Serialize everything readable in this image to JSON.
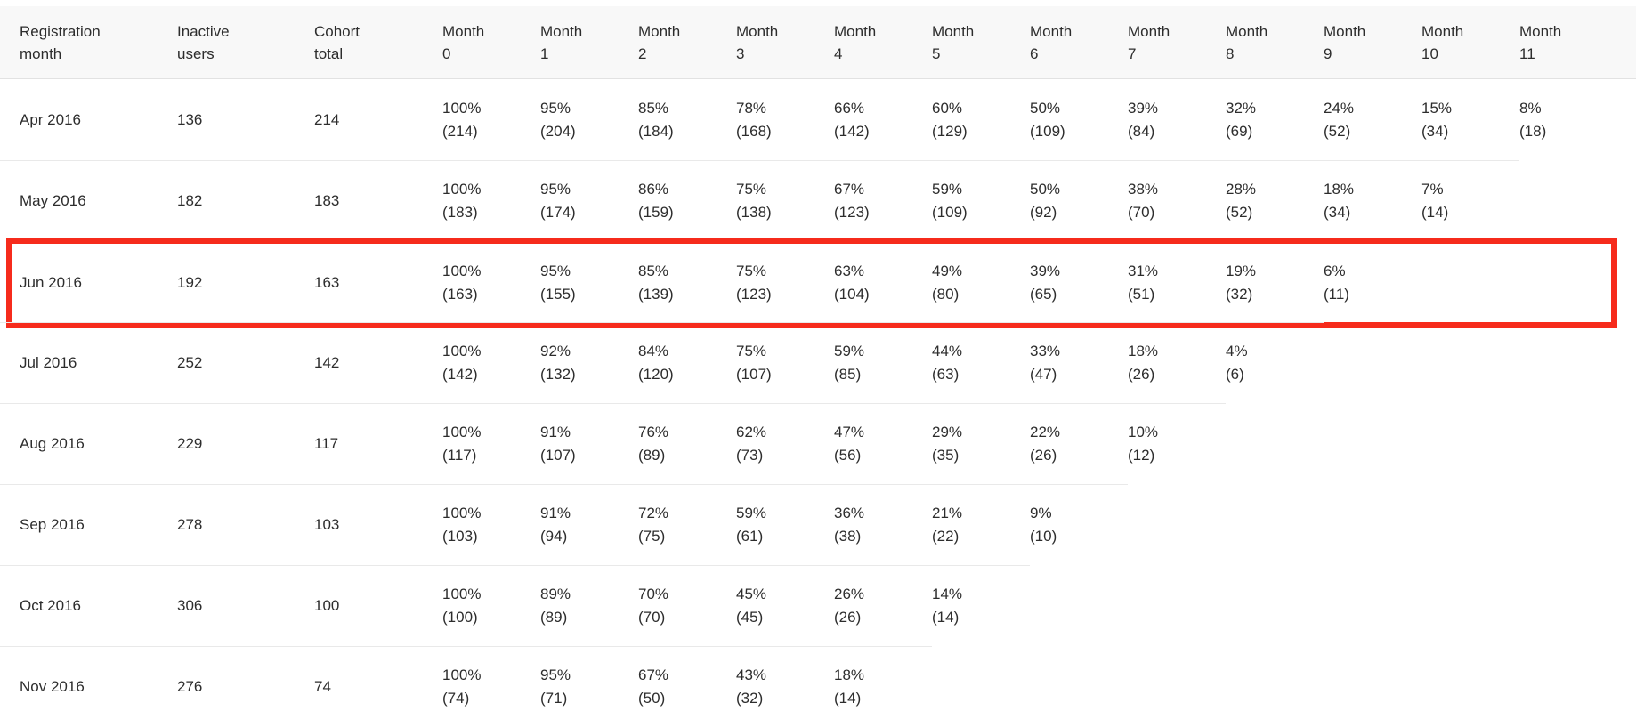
{
  "chart_data": {
    "type": "table",
    "title": "",
    "columns": [
      "Registration month",
      "Inactive users",
      "Cohort total",
      "Month 0",
      "Month 1",
      "Month 2",
      "Month 3",
      "Month 4",
      "Month 5",
      "Month 6",
      "Month 7",
      "Month 8",
      "Month 9",
      "Month 10",
      "Month 11"
    ],
    "highlighted_row": "Jun 2016",
    "rows": [
      {
        "registration_month": "Apr 2016",
        "inactive_users": "136",
        "cohort_total": "214",
        "highlighted": false,
        "retention": [
          {
            "pct": "100%",
            "count": "(214)"
          },
          {
            "pct": "95%",
            "count": "(204)"
          },
          {
            "pct": "85%",
            "count": "(184)"
          },
          {
            "pct": "78%",
            "count": "(168)"
          },
          {
            "pct": "66%",
            "count": "(142)"
          },
          {
            "pct": "60%",
            "count": "(129)"
          },
          {
            "pct": "50%",
            "count": "(109)"
          },
          {
            "pct": "39%",
            "count": "(84)"
          },
          {
            "pct": "32%",
            "count": "(69)"
          },
          {
            "pct": "24%",
            "count": "(52)"
          },
          {
            "pct": "15%",
            "count": "(34)"
          },
          {
            "pct": "8%",
            "count": "(18)"
          }
        ]
      },
      {
        "registration_month": "May 2016",
        "inactive_users": "182",
        "cohort_total": "183",
        "highlighted": false,
        "retention": [
          {
            "pct": "100%",
            "count": "(183)"
          },
          {
            "pct": "95%",
            "count": "(174)"
          },
          {
            "pct": "86%",
            "count": "(159)"
          },
          {
            "pct": "75%",
            "count": "(138)"
          },
          {
            "pct": "67%",
            "count": "(123)"
          },
          {
            "pct": "59%",
            "count": "(109)"
          },
          {
            "pct": "50%",
            "count": "(92)"
          },
          {
            "pct": "38%",
            "count": "(70)"
          },
          {
            "pct": "28%",
            "count": "(52)"
          },
          {
            "pct": "18%",
            "count": "(34)"
          },
          {
            "pct": "7%",
            "count": "(14)"
          }
        ]
      },
      {
        "registration_month": "Jun 2016",
        "inactive_users": "192",
        "cohort_total": "163",
        "highlighted": true,
        "retention": [
          {
            "pct": "100%",
            "count": "(163)"
          },
          {
            "pct": "95%",
            "count": "(155)"
          },
          {
            "pct": "85%",
            "count": "(139)"
          },
          {
            "pct": "75%",
            "count": "(123)"
          },
          {
            "pct": "63%",
            "count": "(104)"
          },
          {
            "pct": "49%",
            "count": "(80)"
          },
          {
            "pct": "39%",
            "count": "(65)"
          },
          {
            "pct": "31%",
            "count": "(51)"
          },
          {
            "pct": "19%",
            "count": "(32)"
          },
          {
            "pct": "6%",
            "count": "(11)"
          }
        ]
      },
      {
        "registration_month": "Jul 2016",
        "inactive_users": "252",
        "cohort_total": "142",
        "highlighted": false,
        "retention": [
          {
            "pct": "100%",
            "count": "(142)"
          },
          {
            "pct": "92%",
            "count": "(132)"
          },
          {
            "pct": "84%",
            "count": "(120)"
          },
          {
            "pct": "75%",
            "count": "(107)"
          },
          {
            "pct": "59%",
            "count": "(85)"
          },
          {
            "pct": "44%",
            "count": "(63)"
          },
          {
            "pct": "33%",
            "count": "(47)"
          },
          {
            "pct": "18%",
            "count": "(26)"
          },
          {
            "pct": "4%",
            "count": "(6)"
          }
        ]
      },
      {
        "registration_month": "Aug 2016",
        "inactive_users": "229",
        "cohort_total": "117",
        "highlighted": false,
        "retention": [
          {
            "pct": "100%",
            "count": "(117)"
          },
          {
            "pct": "91%",
            "count": "(107)"
          },
          {
            "pct": "76%",
            "count": "(89)"
          },
          {
            "pct": "62%",
            "count": "(73)"
          },
          {
            "pct": "47%",
            "count": "(56)"
          },
          {
            "pct": "29%",
            "count": "(35)"
          },
          {
            "pct": "22%",
            "count": "(26)"
          },
          {
            "pct": "10%",
            "count": "(12)"
          }
        ]
      },
      {
        "registration_month": "Sep 2016",
        "inactive_users": "278",
        "cohort_total": "103",
        "highlighted": false,
        "retention": [
          {
            "pct": "100%",
            "count": "(103)"
          },
          {
            "pct": "91%",
            "count": "(94)"
          },
          {
            "pct": "72%",
            "count": "(75)"
          },
          {
            "pct": "59%",
            "count": "(61)"
          },
          {
            "pct": "36%",
            "count": "(38)"
          },
          {
            "pct": "21%",
            "count": "(22)"
          },
          {
            "pct": "9%",
            "count": "(10)"
          }
        ]
      },
      {
        "registration_month": "Oct 2016",
        "inactive_users": "306",
        "cohort_total": "100",
        "highlighted": false,
        "retention": [
          {
            "pct": "100%",
            "count": "(100)"
          },
          {
            "pct": "89%",
            "count": "(89)"
          },
          {
            "pct": "70%",
            "count": "(70)"
          },
          {
            "pct": "45%",
            "count": "(45)"
          },
          {
            "pct": "26%",
            "count": "(26)"
          },
          {
            "pct": "14%",
            "count": "(14)"
          }
        ]
      },
      {
        "registration_month": "Nov 2016",
        "inactive_users": "276",
        "cohort_total": "74",
        "highlighted": false,
        "retention": [
          {
            "pct": "100%",
            "count": "(74)"
          },
          {
            "pct": "95%",
            "count": "(71)"
          },
          {
            "pct": "67%",
            "count": "(50)"
          },
          {
            "pct": "43%",
            "count": "(32)"
          },
          {
            "pct": "18%",
            "count": "(14)"
          }
        ]
      }
    ]
  },
  "colors": {
    "highlight_border": "#f62b1c",
    "header_bg": "#f8f8f8",
    "header_divider": "#e2e2e2",
    "row_divider": "#e9e9e9",
    "text": "#2d2d2d",
    "background": "#ffffff"
  }
}
